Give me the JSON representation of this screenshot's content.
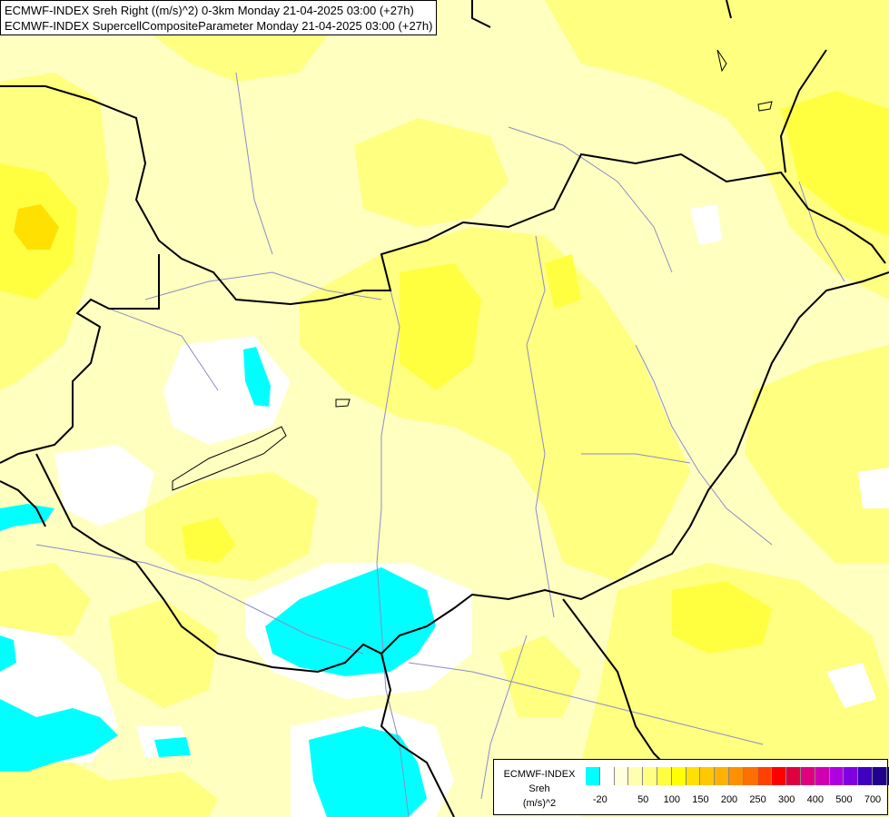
{
  "title_lines": [
    "ECMWF-INDEX Sreh Right ((m/s)^2) 0-3km Monday 21-04-2025 03:00 (+27h)",
    "ECMWF-INDEX SupercellCompositeParameter Monday 21-04-2025 03:00 (+27h)"
  ],
  "legend": {
    "name": "ECMWF-INDEX",
    "variable": "Sreh",
    "unit": "(m/s)^2",
    "colors": [
      "#00ffff",
      "#ffffff",
      "#ffffe0",
      "#ffffb0",
      "#ffff80",
      "#ffff40",
      "#ffff00",
      "#ffe000",
      "#ffc800",
      "#ffb000",
      "#ff9000",
      "#ff7000",
      "#ff4000",
      "#ff0000",
      "#e00040",
      "#e00080",
      "#d000b0",
      "#b000e0",
      "#8000e0",
      "#4000c0",
      "#200090",
      "#000080"
    ],
    "tick_labels": [
      "-20",
      "50",
      "100",
      "150",
      "200",
      "250",
      "300",
      "400",
      "500",
      "700"
    ]
  }
}
